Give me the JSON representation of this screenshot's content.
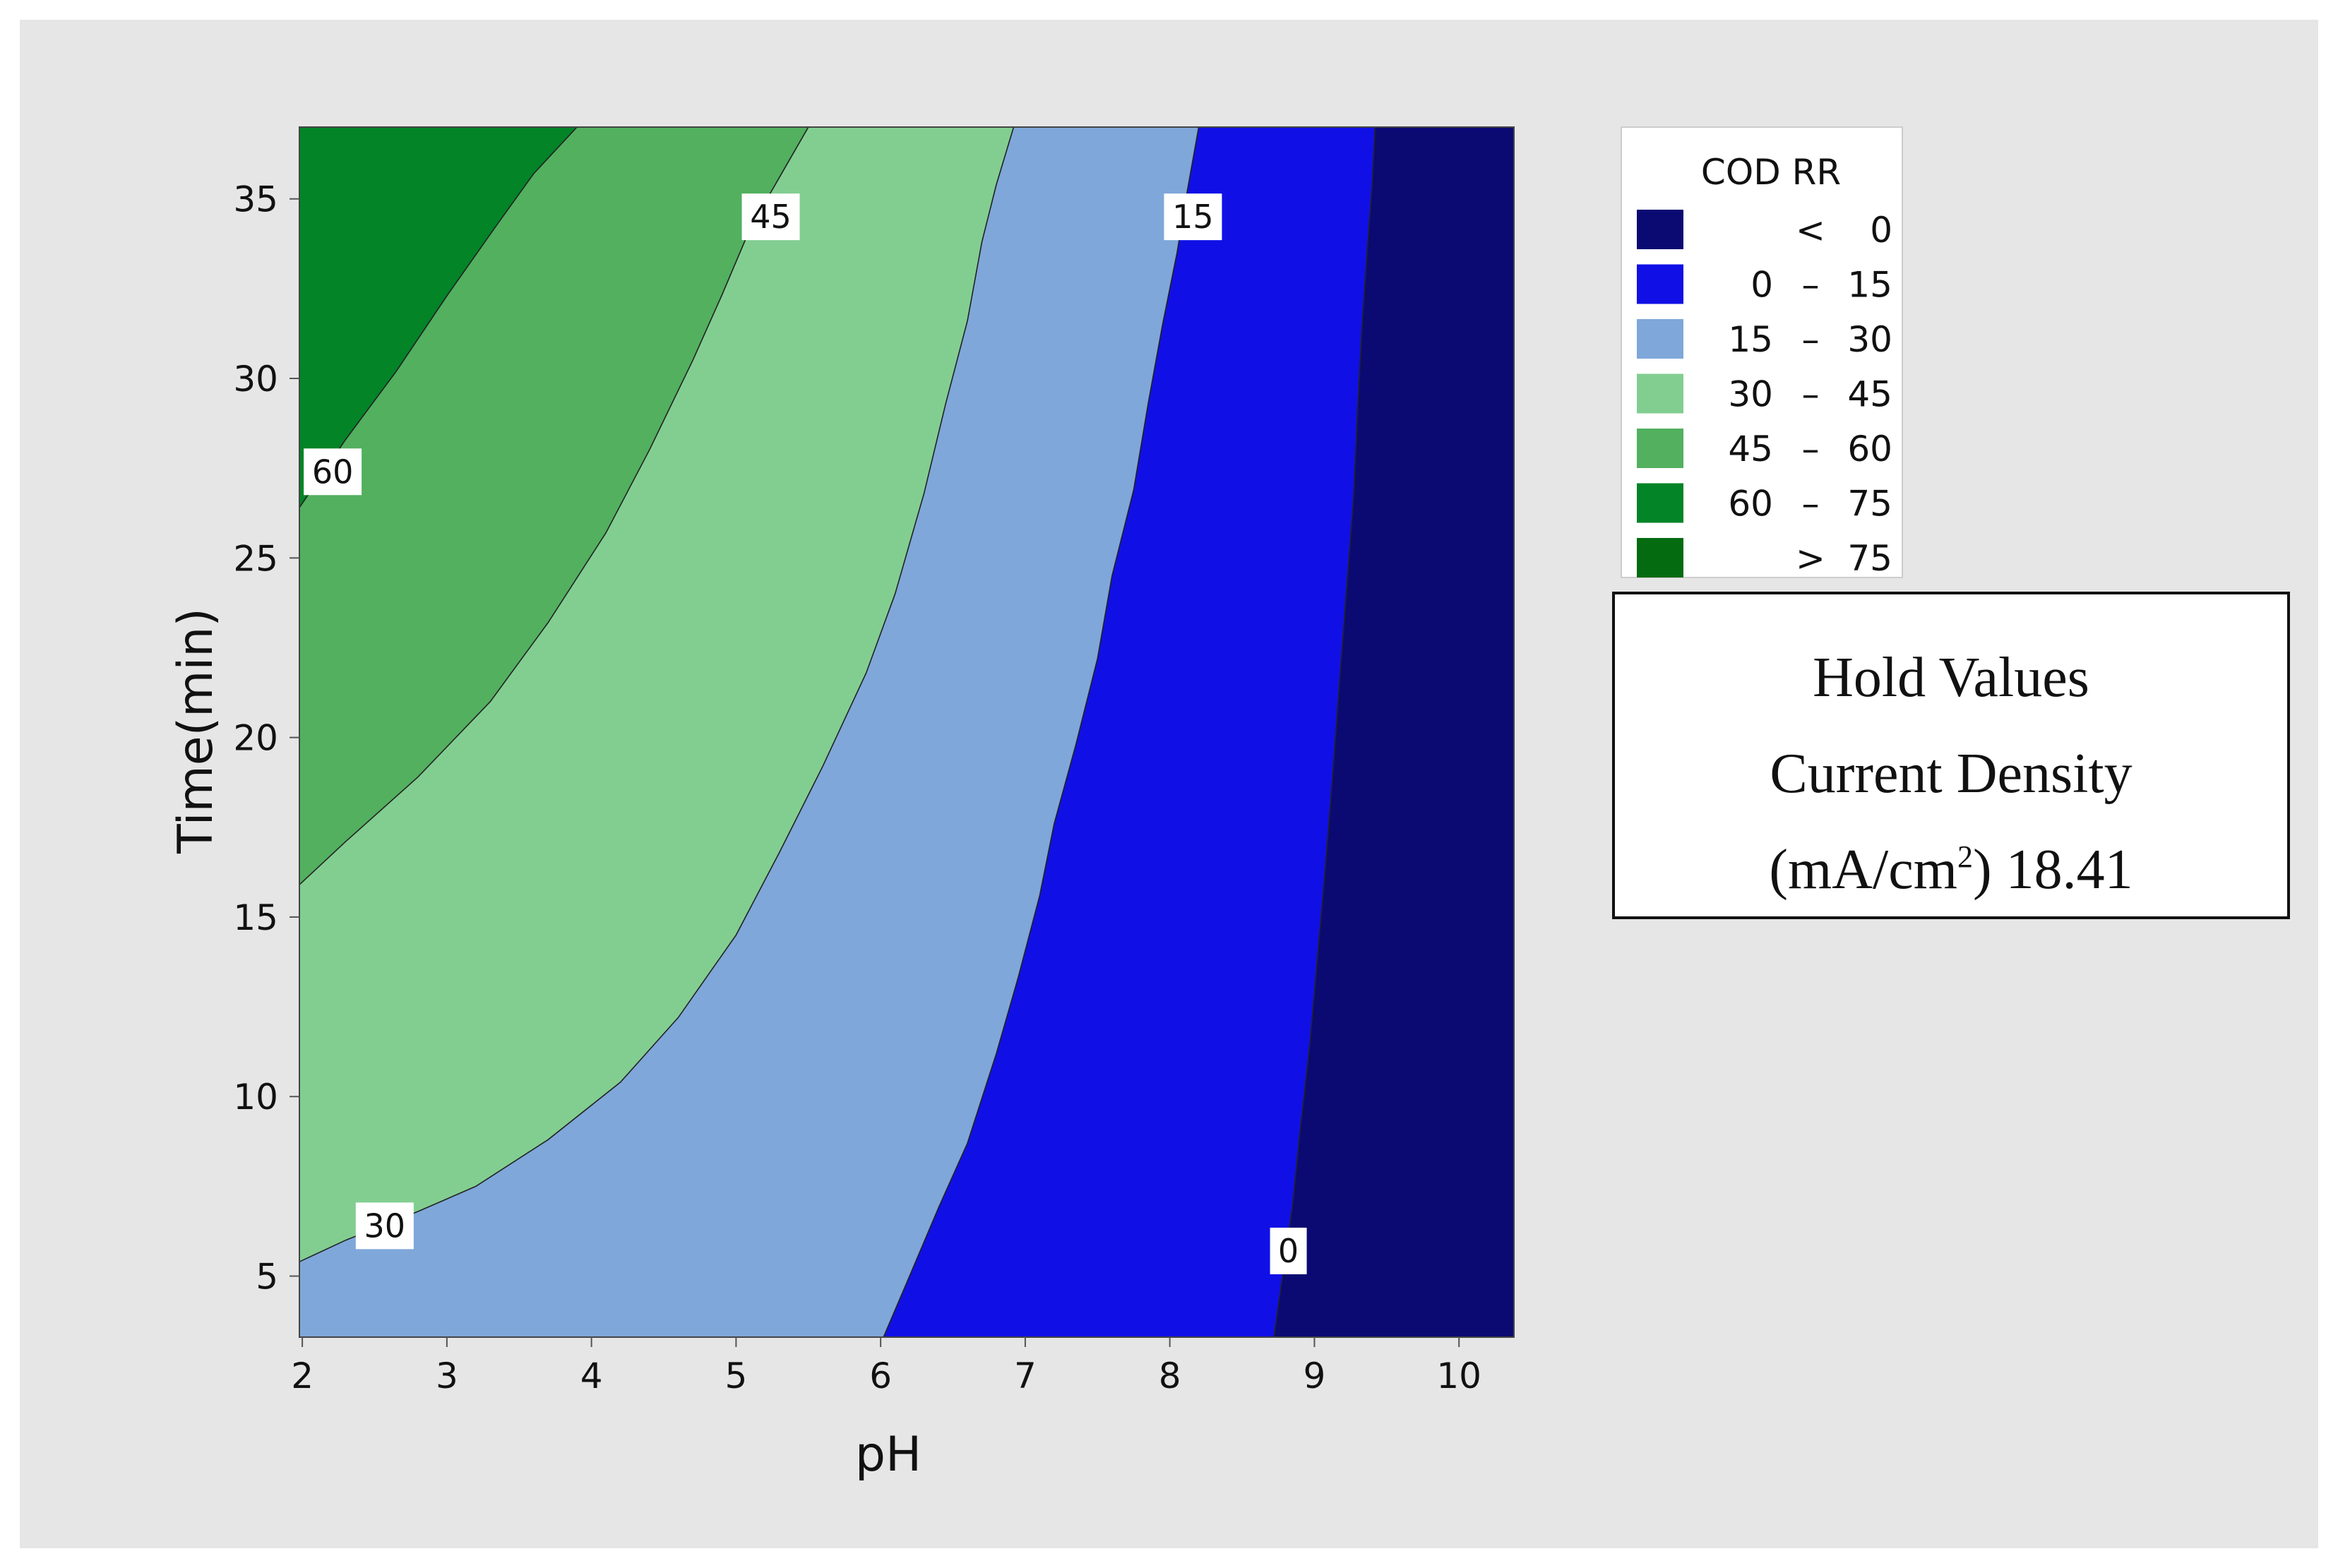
{
  "chart_data": {
    "type": "contour",
    "xlabel": "pH",
    "ylabel": "Time(min)",
    "xlim": [
      1.98,
      10.38
    ],
    "ylim": [
      3.3,
      37.0
    ],
    "x_ticks": [
      2,
      3,
      4,
      5,
      6,
      7,
      8,
      9,
      10
    ],
    "y_ticks": [
      5,
      10,
      15,
      20,
      25,
      30,
      35
    ],
    "levels": [
      0,
      15,
      30,
      45,
      60,
      75
    ],
    "bands": [
      {
        "range": "< 0",
        "color": "#0a0a72"
      },
      {
        "range": "0 – 15",
        "color": "#1010e6"
      },
      {
        "range": "15 – 30",
        "color": "#7fa7d9"
      },
      {
        "range": "30 – 45",
        "color": "#82ce91"
      },
      {
        "range": "45 – 60",
        "color": "#52b05f"
      },
      {
        "range": "60 – 75",
        "color": "#028427"
      },
      {
        "range": "> 75",
        "color": "#046b11"
      }
    ],
    "contour_lines": [
      {
        "level": 60,
        "points": [
          [
            1.98,
            26.4
          ],
          [
            2.3,
            28.3
          ],
          [
            2.65,
            30.2
          ],
          [
            3.0,
            32.3
          ],
          [
            3.35,
            34.3
          ],
          [
            3.6,
            35.7
          ],
          [
            3.9,
            37.0
          ]
        ]
      },
      {
        "level": 45,
        "points": [
          [
            1.98,
            15.9
          ],
          [
            2.3,
            17.1
          ],
          [
            2.8,
            18.9
          ],
          [
            3.3,
            21.0
          ],
          [
            3.7,
            23.2
          ],
          [
            4.1,
            25.7
          ],
          [
            4.4,
            28.0
          ],
          [
            4.7,
            30.5
          ],
          [
            4.9,
            32.3
          ],
          [
            5.1,
            34.2
          ],
          [
            5.3,
            35.6
          ],
          [
            5.5,
            37.0
          ]
        ]
      },
      {
        "level": 30,
        "points": [
          [
            1.98,
            5.4
          ],
          [
            2.3,
            6.0
          ],
          [
            2.8,
            6.8
          ],
          [
            3.2,
            7.5
          ],
          [
            3.7,
            8.8
          ],
          [
            4.2,
            10.4
          ],
          [
            4.6,
            12.2
          ],
          [
            5.0,
            14.5
          ],
          [
            5.3,
            16.8
          ],
          [
            5.6,
            19.2
          ],
          [
            5.9,
            21.8
          ],
          [
            6.1,
            24.0
          ],
          [
            6.3,
            26.8
          ],
          [
            6.45,
            29.3
          ],
          [
            6.6,
            31.6
          ],
          [
            6.7,
            33.8
          ],
          [
            6.8,
            35.4
          ],
          [
            6.92,
            37.0
          ]
        ]
      },
      {
        "level": 15,
        "points": [
          [
            6.02,
            3.3
          ],
          [
            6.2,
            5.0
          ],
          [
            6.4,
            6.9
          ],
          [
            6.6,
            8.7
          ],
          [
            6.8,
            11.2
          ],
          [
            6.95,
            13.3
          ],
          [
            7.1,
            15.6
          ],
          [
            7.2,
            17.6
          ],
          [
            7.35,
            19.8
          ],
          [
            7.5,
            22.2
          ],
          [
            7.6,
            24.5
          ],
          [
            7.75,
            26.9
          ],
          [
            7.85,
            29.3
          ],
          [
            7.95,
            31.5
          ],
          [
            8.05,
            33.5
          ],
          [
            8.12,
            35.2
          ],
          [
            8.2,
            37.0
          ]
        ]
      },
      {
        "level": 0,
        "points": [
          [
            8.72,
            3.3
          ],
          [
            8.78,
            5.0
          ],
          [
            8.85,
            7.0
          ],
          [
            8.9,
            9.0
          ],
          [
            8.97,
            11.5
          ],
          [
            9.02,
            13.8
          ],
          [
            9.07,
            16.1
          ],
          [
            9.12,
            18.6
          ],
          [
            9.17,
            21.3
          ],
          [
            9.22,
            24.0
          ],
          [
            9.27,
            26.6
          ],
          [
            9.3,
            29.2
          ],
          [
            9.33,
            31.5
          ],
          [
            9.37,
            33.8
          ],
          [
            9.4,
            35.4
          ],
          [
            9.42,
            37.0
          ]
        ]
      }
    ],
    "contour_labels": [
      {
        "text": "60",
        "x": 2.21,
        "y": 27.4
      },
      {
        "text": "45",
        "x": 5.24,
        "y": 34.5
      },
      {
        "text": "30",
        "x": 2.57,
        "y": 6.4
      },
      {
        "text": "15",
        "x": 8.16,
        "y": 34.5
      },
      {
        "text": "0",
        "x": 8.82,
        "y": 5.7
      }
    ],
    "legend": {
      "title": "COD RR",
      "position": "right",
      "items": [
        {
          "low": "",
          "sep": "<",
          "high": "0"
        },
        {
          "low": "0",
          "sep": "–",
          "high": "15"
        },
        {
          "low": "15",
          "sep": "–",
          "high": "30"
        },
        {
          "low": "30",
          "sep": "–",
          "high": "45"
        },
        {
          "low": "45",
          "sep": "–",
          "high": "60"
        },
        {
          "low": "60",
          "sep": "–",
          "high": "75"
        },
        {
          "low": "",
          "sep": ">",
          "high": "75"
        }
      ]
    },
    "hold_values": {
      "line1": "Hold Values",
      "line2": "Current Density",
      "line3_pre": "(mA/cm",
      "line3_sup": "2",
      "line3_post": ") 18.41"
    }
  }
}
